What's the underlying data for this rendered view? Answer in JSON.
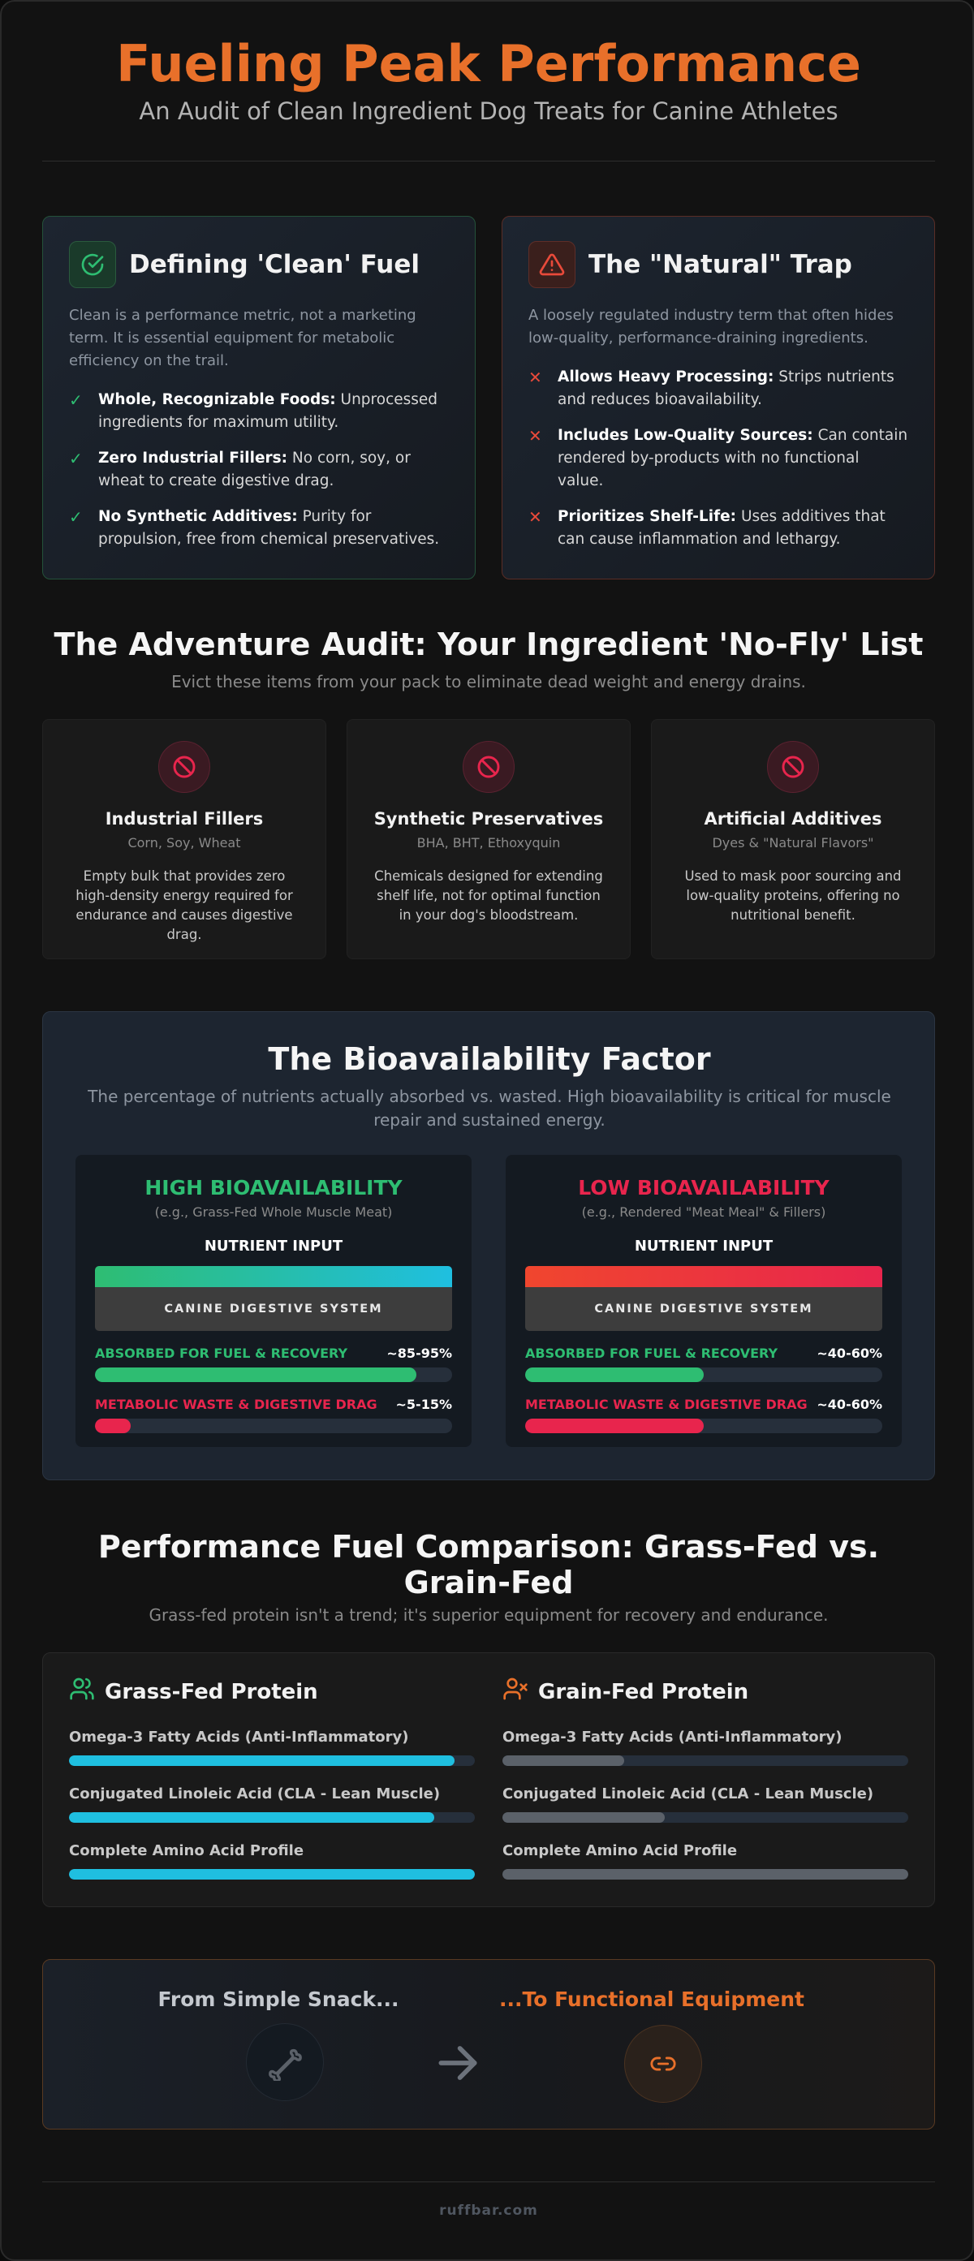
{
  "header": {
    "title": "Fueling Peak Performance",
    "subtitle": "An Audit of Clean Ingredient Dog Treats for Canine Athletes"
  },
  "clean_card": {
    "icon": "check-circle-icon",
    "title": "Defining 'Clean' Fuel",
    "intro": "Clean is a performance metric, not a marketing term. It is essential equipment for metabolic efficiency on the trail.",
    "items": [
      {
        "bold": "Whole, Recognizable Foods:",
        "text": " Unprocessed ingredients for maximum utility."
      },
      {
        "bold": "Zero Industrial Fillers:",
        "text": " No corn, soy, or wheat to create digestive drag."
      },
      {
        "bold": "No Synthetic Additives:",
        "text": " Purity for propulsion, free from chemical preservatives."
      }
    ]
  },
  "trap_card": {
    "icon": "warning-triangle-icon",
    "title": "The \"Natural\" Trap",
    "intro": "A loosely regulated industry term that often hides low-quality, performance-draining ingredients.",
    "items": [
      {
        "bold": "Allows Heavy Processing:",
        "text": " Strips nutrients and reduces bioavailability."
      },
      {
        "bold": "Includes Low-Quality Sources:",
        "text": " Can contain rendered by-products with no functional value."
      },
      {
        "bold": "Prioritizes Shelf-Life:",
        "text": " Uses additives that can cause inflammation and lethargy."
      }
    ]
  },
  "audit": {
    "title": "The Adventure Audit: Your Ingredient 'No-Fly' List",
    "subtitle": "Evict these items from your pack to eliminate dead weight and energy drains.",
    "items": [
      {
        "title": "Industrial Fillers",
        "sub": "Corn, Soy, Wheat",
        "desc": "Empty bulk that provides zero high-density energy required for endurance and causes digestive drag."
      },
      {
        "title": "Synthetic Preservatives",
        "sub": "BHA, BHT, Ethoxyquin",
        "desc": "Chemicals designed for extending shelf life, not for optimal function in your dog's bloodstream."
      },
      {
        "title": "Artificial Additives",
        "sub": "Dyes & \"Natural Flavors\"",
        "desc": "Used to mask poor sourcing and low-quality proteins, offering no nutritional benefit."
      }
    ]
  },
  "bio": {
    "title": "The Bioavailability Factor",
    "desc": "The percentage of nutrients actually absorbed vs. wasted. High bioavailability is critical for muscle repair and sustained energy.",
    "high": {
      "head": "HIGH BIOAVAILABILITY",
      "eg": "(e.g., Grass-Fed Whole Muscle Meat)",
      "input": "NUTRIENT INPUT",
      "system": "CANINE DIGESTIVE SYSTEM",
      "absorbed_label": "ABSORBED FOR FUEL & RECOVERY",
      "absorbed_pct": "~85-95%",
      "absorbed_fill": 0.9,
      "waste_label": "METABOLIC WASTE & DIGESTIVE DRAG",
      "waste_pct": "~5-15%",
      "waste_fill": 0.1
    },
    "low": {
      "head": "LOW BIOAVAILABILITY",
      "eg": "(e.g., Rendered \"Meat Meal\" & Fillers)",
      "input": "NUTRIENT INPUT",
      "system": "CANINE DIGESTIVE SYSTEM",
      "absorbed_label": "ABSORBED FOR FUEL & RECOVERY",
      "absorbed_pct": "~40-60%",
      "absorbed_fill": 0.5,
      "waste_label": "METABOLIC WASTE & DIGESTIVE DRAG",
      "waste_pct": "~40-60%",
      "waste_fill": 0.5
    }
  },
  "comparison": {
    "title": "Performance Fuel Comparison: Grass-Fed vs. Grain-Fed",
    "subtitle": "Grass-fed protein isn't a trend; it's superior equipment for recovery and endurance.",
    "grass": {
      "icon": "users-icon",
      "head": "Grass-Fed Protein",
      "rows": [
        {
          "label": "Omega-3 Fatty Acids (Anti-Inflammatory)",
          "fill": 0.95
        },
        {
          "label": "Conjugated Linoleic Acid (CLA - Lean Muscle)",
          "fill": 0.9
        },
        {
          "label": "Complete Amino Acid Profile",
          "fill": 1.0
        }
      ]
    },
    "grain": {
      "icon": "user-x-icon",
      "head": "Grain-Fed Protein",
      "rows": [
        {
          "label": "Omega-3 Fatty Acids (Anti-Inflammatory)",
          "fill": 0.3
        },
        {
          "label": "Conjugated Linoleic Acid (CLA - Lean Muscle)",
          "fill": 0.4
        },
        {
          "label": "Complete Amino Acid Profile",
          "fill": 1.0
        }
      ]
    }
  },
  "transition": {
    "from": "From Simple Snack...",
    "to": "...To Functional Equipment",
    "from_icon": "bone-icon",
    "arrow_icon": "arrow-right-icon",
    "to_icon": "chain-link-icon"
  },
  "footer": {
    "text": "ruffbar.com"
  },
  "colors": {
    "accent": "#e8702a",
    "green": "#2ebd72",
    "red": "#e8254d",
    "cyan": "#1fbfe0"
  }
}
